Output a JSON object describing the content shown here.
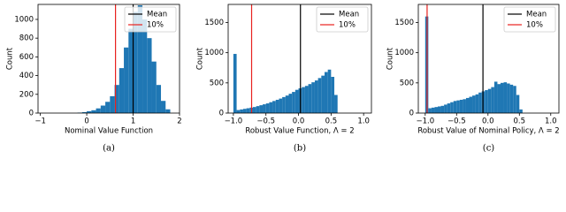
{
  "chart_data": [
    {
      "type": "histogram",
      "caption": "(a)",
      "xlabel": "Nominal Value Function",
      "ylabel": "Count",
      "color": "#1f77b4",
      "bins": [
        -0.2,
        -0.1,
        0,
        0.1,
        0.2,
        0.3,
        0.4,
        0.5,
        0.6,
        0.7,
        0.8,
        0.9,
        1.0,
        1.1,
        1.2,
        1.3,
        1.4,
        1.5,
        1.6,
        1.7,
        1.8
      ],
      "counts": [
        5,
        10,
        20,
        30,
        50,
        80,
        120,
        180,
        300,
        480,
        700,
        900,
        1080,
        1150,
        1000,
        800,
        550,
        300,
        130,
        40
      ],
      "xlim": [
        -1.05,
        2.0
      ],
      "xticks": [
        {
          "value": -1,
          "label": "−1"
        },
        0,
        1,
        2
      ],
      "ylim": [
        0,
        1160
      ],
      "yticks": [
        0,
        200,
        400,
        600,
        800,
        1000
      ],
      "markers": [
        {
          "name": "Mean",
          "value": 1.0,
          "color": "#000000"
        },
        {
          "name": "10%",
          "value": 0.62,
          "color": "#e8221f"
        }
      ]
    },
    {
      "type": "histogram",
      "caption": "(b)",
      "xlabel": "Robust Value Function, Λ = 2",
      "ylabel": "Count",
      "color": "#1f77b4",
      "bins": [
        -1.0,
        -0.95,
        -0.9,
        -0.85,
        -0.8,
        -0.75,
        -0.7,
        -0.65,
        -0.6,
        -0.55,
        -0.5,
        -0.45,
        -0.4,
        -0.35,
        -0.3,
        -0.25,
        -0.2,
        -0.15,
        -0.1,
        -0.05,
        0,
        0.05,
        0.1,
        0.15,
        0.2,
        0.25,
        0.3,
        0.35,
        0.4,
        0.45,
        0.5,
        0.55,
        0.6
      ],
      "counts": [
        980,
        50,
        60,
        70,
        80,
        90,
        100,
        115,
        130,
        145,
        160,
        180,
        200,
        220,
        240,
        265,
        290,
        320,
        350,
        385,
        410,
        430,
        450,
        480,
        510,
        540,
        580,
        620,
        680,
        720,
        600,
        300
      ],
      "xlim": [
        -1.08,
        1.12
      ],
      "xticks": [
        {
          "value": -1,
          "label": "−1.0"
        },
        {
          "value": -0.5,
          "label": "−0.5"
        },
        {
          "value": 0,
          "label": "0.0"
        },
        0.5,
        {
          "value": 1,
          "label": "1.0"
        }
      ],
      "ylim": [
        0,
        1800
      ],
      "yticks": [
        0,
        500,
        1000,
        1500
      ],
      "markers": [
        {
          "name": "Mean",
          "value": 0.03,
          "color": "#000000"
        },
        {
          "name": "10%",
          "value": -0.72,
          "color": "#e8221f"
        }
      ]
    },
    {
      "type": "histogram",
      "caption": "(c)",
      "xlabel": "Robust Value of Nominal Policy, Λ = 2",
      "ylabel": "Count",
      "color": "#1f77b4",
      "bins": [
        -1.0,
        -0.95,
        -0.9,
        -0.85,
        -0.8,
        -0.75,
        -0.7,
        -0.65,
        -0.6,
        -0.55,
        -0.5,
        -0.45,
        -0.4,
        -0.35,
        -0.3,
        -0.25,
        -0.2,
        -0.15,
        -0.1,
        -0.05,
        0,
        0.05,
        0.1,
        0.15,
        0.2,
        0.25,
        0.3,
        0.35,
        0.4,
        0.45,
        0.5,
        0.55
      ],
      "counts": [
        1600,
        80,
        90,
        100,
        110,
        120,
        140,
        160,
        180,
        200,
        210,
        220,
        230,
        250,
        270,
        290,
        310,
        340,
        360,
        380,
        400,
        430,
        520,
        480,
        500,
        510,
        490,
        470,
        450,
        300,
        60
      ],
      "xlim": [
        -1.11,
        1.13
      ],
      "xticks": [
        {
          "value": -1,
          "label": "−1.0"
        },
        {
          "value": -0.5,
          "label": "−0.5"
        },
        {
          "value": 0,
          "label": "0.0"
        },
        0.5,
        {
          "value": 1,
          "label": "1.0"
        }
      ],
      "ylim": [
        0,
        1800
      ],
      "yticks": [
        0,
        500,
        1000,
        1500
      ],
      "markers": [
        {
          "name": "Mean",
          "value": -0.08,
          "color": "#000000"
        },
        {
          "name": "10%",
          "value": -0.97,
          "color": "#e8221f"
        }
      ]
    }
  ]
}
